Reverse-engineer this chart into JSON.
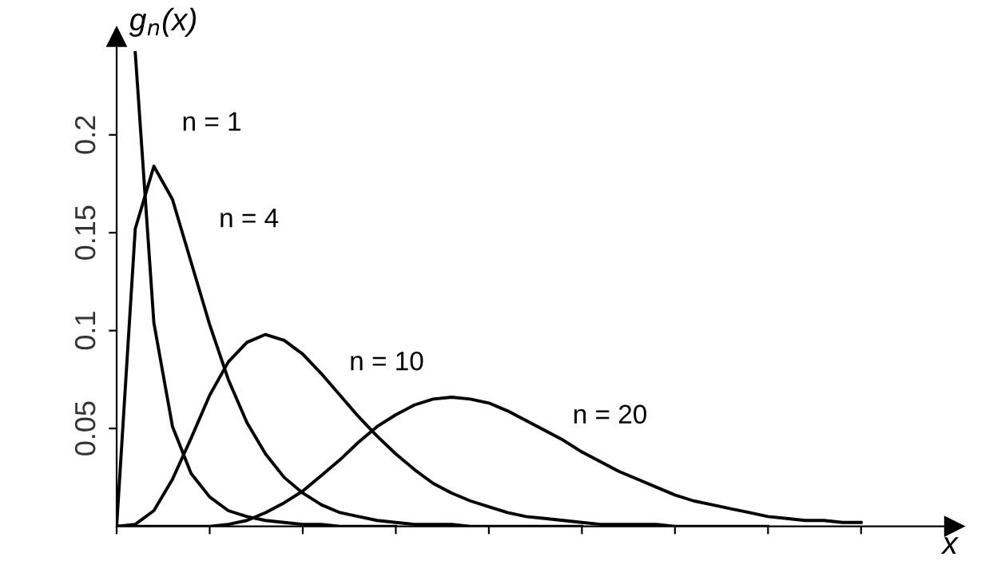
{
  "chart_data": {
    "type": "line",
    "xlabel": "x",
    "ylabel": "g$_{n}$(x)",
    "ylim": [
      0,
      0.25
    ],
    "categories": [
      null,
      null,
      null,
      null,
      null,
      null,
      null,
      null,
      null,
      null,
      null,
      null,
      null,
      null,
      null,
      null,
      null,
      null,
      null,
      null,
      null,
      null,
      null,
      null,
      null,
      null,
      null,
      null,
      null,
      null,
      null,
      null,
      null,
      null,
      null,
      null,
      null,
      null,
      null,
      null,
      null,
      null,
      null,
      null,
      null,
      null
    ],
    "yticks": [
      0.05,
      0.1,
      0.15,
      0.2
    ],
    "tick_labels": "y",
    "grid": false,
    "marker": "none",
    "line_style": "solid",
    "series": [
      {
        "name": "n = 1",
        "color": "#000000",
        "values": [
          null,
          0.242,
          0.104,
          0.051,
          0.027,
          0.015,
          0.008,
          0.005,
          0.003,
          0.002,
          0.001,
          0.001,
          0.0,
          0.0,
          0.0,
          0.0,
          null,
          null,
          null,
          null,
          null,
          null,
          null,
          null,
          null,
          null,
          null,
          null,
          null,
          null,
          null,
          null,
          null,
          null,
          null,
          null,
          null,
          null,
          null,
          null,
          null,
          null,
          null,
          null,
          null,
          null
        ]
      },
      {
        "name": "n = 4",
        "color": "#000000",
        "values": [
          0,
          0.152,
          0.184,
          0.167,
          0.135,
          0.103,
          0.075,
          0.053,
          0.037,
          0.025,
          0.017,
          0.011,
          0.007,
          0.005,
          0.003,
          0.002,
          0.001,
          0.001,
          0.001,
          0.0,
          0.0,
          0.0,
          0.0,
          0.0,
          0.0,
          0.0,
          null,
          null,
          null,
          null,
          null,
          null,
          null,
          null,
          null,
          null,
          null,
          null,
          null,
          null,
          null,
          null,
          null,
          null,
          null,
          null
        ]
      },
      {
        "name": "n = 10",
        "color": "#000000",
        "values": [
          0,
          0.001,
          0.008,
          0.024,
          0.045,
          0.067,
          0.084,
          0.094,
          0.098,
          0.095,
          0.088,
          0.078,
          0.067,
          0.056,
          0.046,
          0.037,
          0.029,
          0.022,
          0.017,
          0.013,
          0.01,
          0.007,
          0.005,
          0.004,
          0.003,
          0.002,
          0.001,
          0.001,
          0.001,
          0.001,
          0.0,
          0.0,
          0.0,
          0.0,
          0.0,
          0.0,
          null,
          null,
          null,
          null,
          null,
          null,
          null,
          null,
          null,
          null
        ]
      },
      {
        "name": "n = 20",
        "color": "#000000",
        "values": [
          0,
          0.0,
          0.0,
          0.0,
          0.0,
          0.0,
          0.001,
          0.003,
          0.007,
          0.012,
          0.018,
          0.026,
          0.034,
          0.043,
          0.051,
          0.057,
          0.062,
          0.065,
          0.066,
          0.065,
          0.063,
          0.059,
          0.054,
          0.049,
          0.044,
          0.038,
          0.033,
          0.028,
          0.024,
          0.02,
          0.016,
          0.013,
          0.011,
          0.009,
          0.007,
          0.005,
          0.004,
          0.003,
          0.003,
          0.002,
          0.002,
          null,
          null,
          null,
          null,
          null
        ]
      }
    ]
  }
}
